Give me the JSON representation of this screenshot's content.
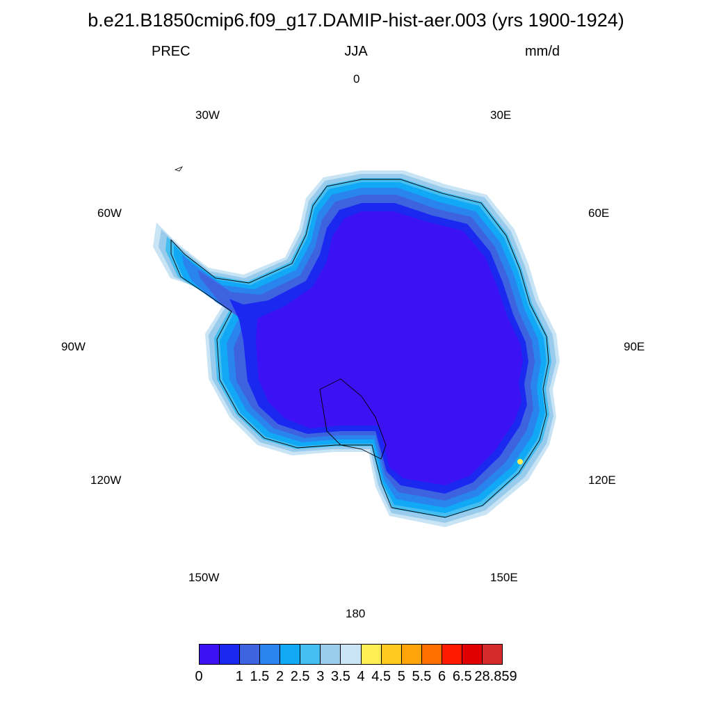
{
  "header": {
    "title": "b.e21.B1850cmip6.f09_g17.DAMIP-hist-aer.003 (yrs 1900-1924)",
    "variable": "PREC",
    "season": "JJA",
    "units": "mm/d"
  },
  "map": {
    "projection": "polar stereographic (south pole)",
    "longitude_labels": [
      "0",
      "30E",
      "60E",
      "90E",
      "120E",
      "150E",
      "180",
      "150W",
      "120W",
      "90W",
      "60W",
      "30W"
    ],
    "field_colors": {
      "interior": "#3c12f5",
      "band_1": "#1a28f0",
      "band_2": "#3d63e0",
      "band_3": "#2a84f0",
      "band_4": "#11a8f5",
      "band_5": "#44bdf0",
      "band_6": "#98cbec",
      "band_7": "#c8e4f5",
      "highlight": "#ffee55"
    },
    "coastline_color": "#000000"
  },
  "colorbar": {
    "colors": [
      "#3c12f5",
      "#1a28f0",
      "#3d63e0",
      "#2a84f0",
      "#11a8f5",
      "#44bdf0",
      "#98cbec",
      "#c8e4f5",
      "#ffee55",
      "#ffca1e",
      "#ffa50a",
      "#ff6e00",
      "#ff1a00",
      "#e00000",
      "#d42a2a"
    ],
    "labels": [
      "0",
      "1",
      "1.5",
      "2",
      "2.5",
      "3",
      "3.5",
      "4",
      "4.5",
      "5",
      "5.5",
      "6",
      "6.5",
      "28.859"
    ]
  }
}
